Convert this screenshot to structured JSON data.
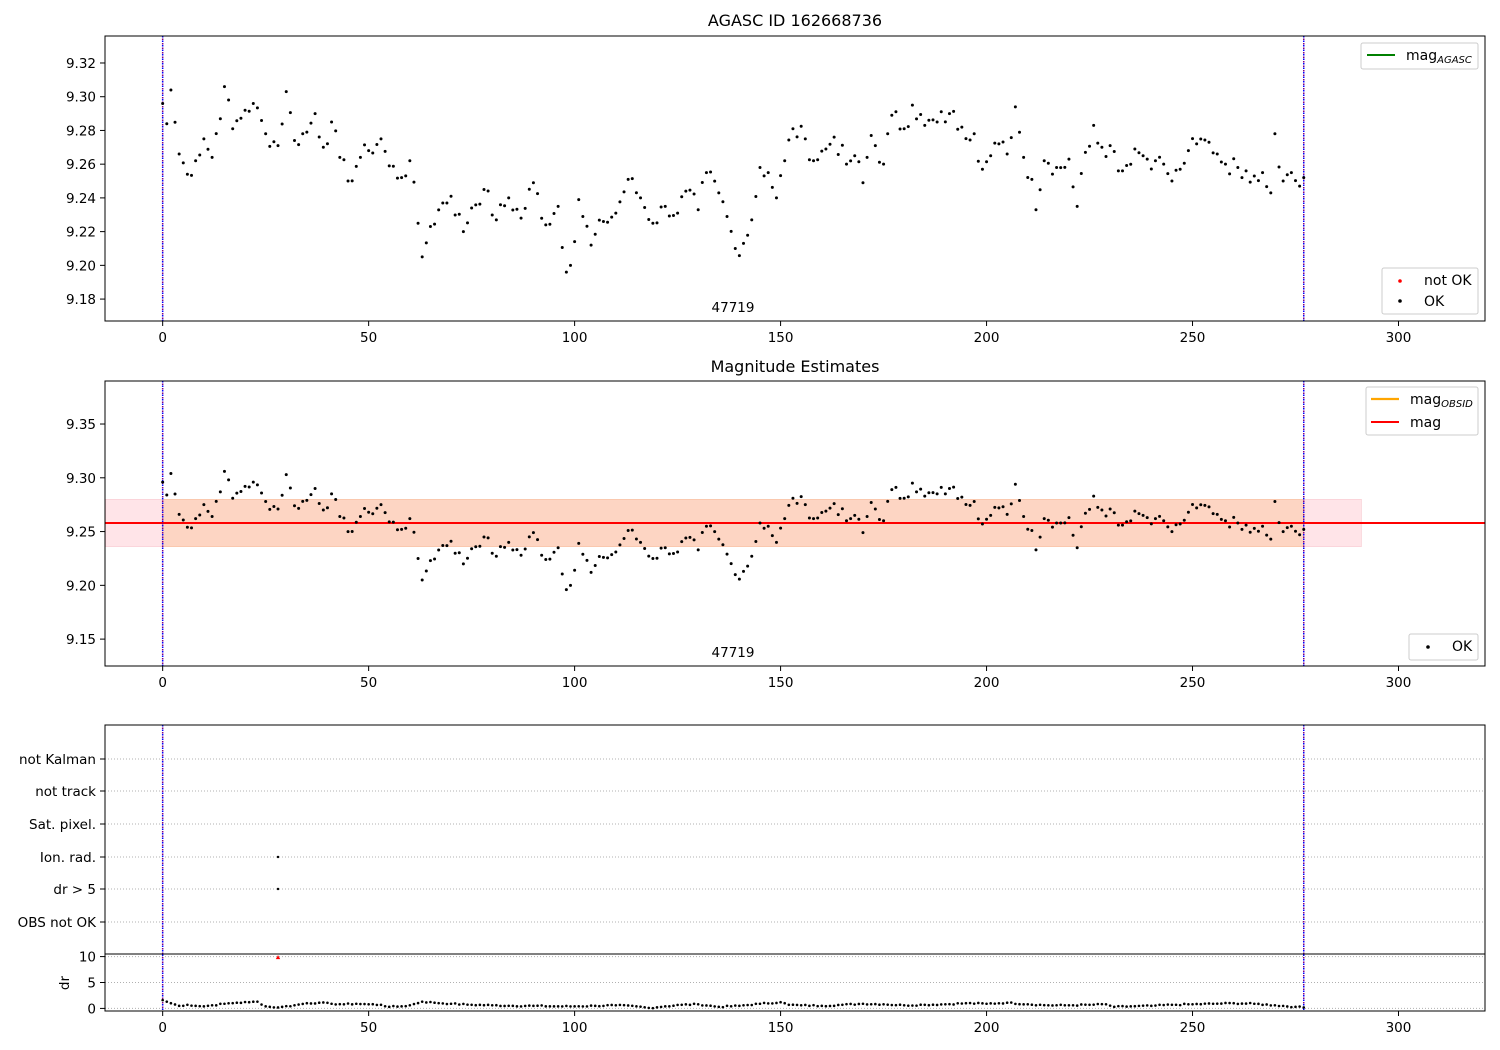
{
  "colors": {
    "ok": "#000000",
    "not_ok": "#ff0000",
    "mag_agasc": "#008000",
    "mag_obsid": "#ffa500",
    "mag": "#ff0000",
    "obs_vline": "#800080",
    "dot_vline": "#0000ff",
    "band_outer": "#ffe4e8",
    "band_inner": "#fdd5c3",
    "grid": "#b0b0b0"
  },
  "chart_data": [
    {
      "type": "scatter",
      "title": "AGASC ID 162668736",
      "annotation": "47719",
      "xlim": [
        -14,
        321
      ],
      "ylim": [
        9.167,
        9.336
      ],
      "xticks": [
        0,
        50,
        100,
        150,
        200,
        250,
        300
      ],
      "yticks": [
        9.18,
        9.2,
        9.22,
        9.24,
        9.26,
        9.28,
        9.3,
        9.32
      ],
      "vlines": [
        0,
        277
      ],
      "legend_lines": [
        {
          "label": "mag",
          "subscript": "AGASC"
        }
      ],
      "legend_markers": [
        {
          "label": "not OK"
        },
        {
          "label": "OK"
        }
      ],
      "legend_lines_loc": "upper right",
      "legend_markers_loc": "lower right",
      "series": [
        {
          "name": "OK",
          "anchors": [
            [
              0,
              9.296
            ],
            [
              1,
              9.284
            ],
            [
              2,
              9.304
            ],
            [
              4,
              9.266
            ],
            [
              6,
              9.254
            ],
            [
              8,
              9.262
            ],
            [
              10,
              9.275
            ],
            [
              12,
              9.264
            ],
            [
              15,
              9.306
            ],
            [
              17,
              9.281
            ],
            [
              20,
              9.292
            ],
            [
              22,
              9.296
            ],
            [
              25,
              9.278
            ],
            [
              28,
              9.271
            ],
            [
              30,
              9.303
            ],
            [
              32,
              9.274
            ],
            [
              35,
              9.279
            ],
            [
              37,
              9.29
            ],
            [
              39,
              9.27
            ],
            [
              41,
              9.285
            ],
            [
              43,
              9.264
            ],
            [
              45,
              9.25
            ],
            [
              48,
              9.264
            ],
            [
              50,
              9.268
            ],
            [
              53,
              9.275
            ],
            [
              55,
              9.259
            ],
            [
              58,
              9.252
            ],
            [
              60,
              9.262
            ],
            [
              62,
              9.225
            ],
            [
              63,
              9.205
            ],
            [
              65,
              9.223
            ],
            [
              68,
              9.237
            ],
            [
              70,
              9.241
            ],
            [
              73,
              9.22
            ],
            [
              75,
              9.234
            ],
            [
              78,
              9.245
            ],
            [
              81,
              9.227
            ],
            [
              84,
              9.24
            ],
            [
              87,
              9.228
            ],
            [
              90,
              9.249
            ],
            [
              93,
              9.224
            ],
            [
              96,
              9.235
            ],
            [
              98,
              9.196
            ],
            [
              99,
              9.2
            ],
            [
              101,
              9.239
            ],
            [
              104,
              9.212
            ],
            [
              107,
              9.226
            ],
            [
              110,
              9.231
            ],
            [
              113,
              9.251
            ],
            [
              116,
              9.24
            ],
            [
              119,
              9.225
            ],
            [
              122,
              9.235
            ],
            [
              125,
              9.231
            ],
            [
              127,
              9.244
            ],
            [
              130,
              9.233
            ],
            [
              132,
              9.255
            ],
            [
              135,
              9.243
            ],
            [
              137,
              9.229
            ],
            [
              139,
              9.21
            ],
            [
              141,
              9.213
            ],
            [
              143,
              9.227
            ],
            [
              145,
              9.258
            ],
            [
              147,
              9.255
            ],
            [
              149,
              9.24
            ],
            [
              151,
              9.262
            ],
            [
              153,
              9.281
            ],
            [
              156,
              9.275
            ],
            [
              158,
              9.262
            ],
            [
              161,
              9.269
            ],
            [
              163,
              9.276
            ],
            [
              166,
              9.26
            ],
            [
              168,
              9.265
            ],
            [
              170,
              9.249
            ],
            [
              172,
              9.277
            ],
            [
              175,
              9.26
            ],
            [
              177,
              9.289
            ],
            [
              180,
              9.281
            ],
            [
              182,
              9.295
            ],
            [
              185,
              9.283
            ],
            [
              188,
              9.285
            ],
            [
              191,
              9.29
            ],
            [
              194,
              9.282
            ],
            [
              197,
              9.278
            ],
            [
              199,
              9.257
            ],
            [
              201,
              9.265
            ],
            [
              203,
              9.272
            ],
            [
              205,
              9.266
            ],
            [
              207,
              9.294
            ],
            [
              209,
              9.264
            ],
            [
              211,
              9.251
            ],
            [
              212,
              9.233
            ],
            [
              214,
              9.262
            ],
            [
              217,
              9.258
            ],
            [
              220,
              9.263
            ],
            [
              222,
              9.235
            ],
            [
              224,
              9.267
            ],
            [
              226,
              9.283
            ],
            [
              228,
              9.27
            ],
            [
              230,
              9.271
            ],
            [
              233,
              9.256
            ],
            [
              236,
              9.269
            ],
            [
              238,
              9.265
            ],
            [
              241,
              9.262
            ],
            [
              243,
              9.26
            ],
            [
              245,
              9.25
            ],
            [
              247,
              9.257
            ],
            [
              249,
              9.268
            ],
            [
              251,
              9.272
            ],
            [
              254,
              9.273
            ],
            [
              256,
              9.266
            ],
            [
              258,
              9.26
            ],
            [
              261,
              9.258
            ],
            [
              263,
              9.256
            ],
            [
              265,
              9.253
            ],
            [
              267,
              9.255
            ],
            [
              269,
              9.243
            ],
            [
              270,
              9.278
            ],
            [
              272,
              9.25
            ],
            [
              274,
              9.255
            ],
            [
              276,
              9.247
            ],
            [
              277,
              9.252
            ]
          ]
        }
      ]
    },
    {
      "type": "scatter",
      "title": "Magnitude Estimates",
      "annotation": "47719",
      "xlim": [
        -14,
        321
      ],
      "ylim": [
        9.125,
        9.39
      ],
      "xticks": [
        0,
        50,
        100,
        150,
        200,
        250,
        300
      ],
      "yticks": [
        9.15,
        9.2,
        9.25,
        9.3,
        9.35
      ],
      "vlines": [
        0,
        277
      ],
      "mag_line": {
        "y": 9.258,
        "x_range": [
          -14,
          321
        ]
      },
      "bands": [
        {
          "y0": 9.236,
          "y1": 9.28,
          "x_range": [
            -14,
            291
          ],
          "kind": "outer"
        },
        {
          "y0": 9.236,
          "y1": 9.28,
          "x_range": [
            0,
            277
          ],
          "kind": "inner"
        }
      ],
      "legend_lines": [
        {
          "label": "mag",
          "subscript": "OBSID"
        },
        {
          "label": "mag"
        }
      ],
      "legend_markers": [
        {
          "label": "OK"
        }
      ],
      "legend_lines_loc": "upper right",
      "legend_markers_loc": "lower right",
      "uses_series_of_panel": 0
    },
    {
      "type": "scatter",
      "title": "",
      "xlim": [
        -14,
        321
      ],
      "xticks": [
        0,
        50,
        100,
        150,
        200,
        250,
        300
      ],
      "vlines": [
        0,
        277
      ],
      "flag_labels": [
        "not Kalman",
        "not track",
        "Sat. pixel.",
        "Ion. rad.",
        "dr > 5",
        "OBS not OK"
      ],
      "flag_points": [
        {
          "flag": "Ion. rad.",
          "x": 28
        },
        {
          "flag": "dr > 5",
          "x": 28
        }
      ],
      "dr_panel": {
        "ylabel": "dr",
        "ylim": [
          -0.5,
          10.5
        ],
        "yticks": [
          0,
          5,
          10
        ],
        "not_ok_point": {
          "x": 28,
          "y": 9.8
        },
        "anchors": [
          [
            0,
            1.6
          ],
          [
            2,
            1.0
          ],
          [
            4,
            0.5
          ],
          [
            6,
            0.7
          ],
          [
            8,
            0.5
          ],
          [
            10,
            0.4
          ],
          [
            12,
            0.6
          ],
          [
            15,
            0.9
          ],
          [
            18,
            1.1
          ],
          [
            21,
            1.2
          ],
          [
            23,
            1.3
          ],
          [
            25,
            0.4
          ],
          [
            27,
            0.2
          ],
          [
            29,
            0.3
          ],
          [
            32,
            0.6
          ],
          [
            35,
            1.0
          ],
          [
            38,
            1.1
          ],
          [
            41,
            0.9
          ],
          [
            44,
            0.8
          ],
          [
            47,
            0.9
          ],
          [
            50,
            0.8
          ],
          [
            53,
            0.7
          ],
          [
            55,
            0.3
          ],
          [
            58,
            0.4
          ],
          [
            60,
            0.6
          ],
          [
            63,
            1.3
          ],
          [
            66,
            1.1
          ],
          [
            70,
            0.9
          ],
          [
            75,
            0.7
          ],
          [
            80,
            0.6
          ],
          [
            85,
            0.5
          ],
          [
            90,
            0.5
          ],
          [
            95,
            0.4
          ],
          [
            100,
            0.4
          ],
          [
            105,
            0.5
          ],
          [
            110,
            0.6
          ],
          [
            115,
            0.4
          ],
          [
            118,
            0.1
          ],
          [
            122,
            0.4
          ],
          [
            126,
            0.7
          ],
          [
            130,
            0.8
          ],
          [
            135,
            0.3
          ],
          [
            140,
            0.5
          ],
          [
            145,
            0.9
          ],
          [
            150,
            1.2
          ],
          [
            152,
            0.7
          ],
          [
            155,
            0.6
          ],
          [
            160,
            0.5
          ],
          [
            165,
            0.7
          ],
          [
            170,
            0.9
          ],
          [
            175,
            0.8
          ],
          [
            180,
            0.6
          ],
          [
            185,
            0.7
          ],
          [
            190,
            0.8
          ],
          [
            195,
            1.0
          ],
          [
            200,
            0.9
          ],
          [
            205,
            1.1
          ],
          [
            210,
            0.8
          ],
          [
            215,
            0.6
          ],
          [
            220,
            0.6
          ],
          [
            225,
            0.7
          ],
          [
            229,
            0.8
          ],
          [
            231,
            0.3
          ],
          [
            235,
            0.4
          ],
          [
            240,
            0.5
          ],
          [
            245,
            0.7
          ],
          [
            250,
            0.8
          ],
          [
            255,
            0.9
          ],
          [
            260,
            1.0
          ],
          [
            265,
            0.9
          ],
          [
            270,
            0.6
          ],
          [
            275,
            0.3
          ],
          [
            277,
            0.2
          ]
        ]
      }
    }
  ]
}
